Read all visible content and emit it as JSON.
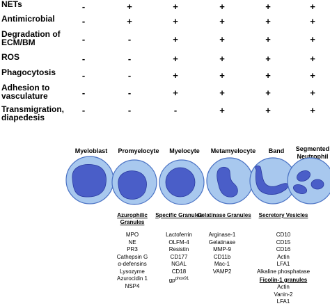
{
  "rows": [
    {
      "label": "NETs",
      "marks": [
        "-",
        "+",
        "+",
        "+",
        "+",
        "+"
      ]
    },
    {
      "label": "Antimicrobial",
      "marks": [
        "-",
        "+",
        "+",
        "+",
        "+",
        "+"
      ]
    },
    {
      "label": "Degradation of ECM/BM",
      "marks": [
        "-",
        "-",
        "+",
        "+",
        "+",
        "+"
      ]
    },
    {
      "label": "ROS",
      "marks": [
        "-",
        "-",
        "+",
        "+",
        "+",
        "+"
      ]
    },
    {
      "label": "Phagocytosis",
      "marks": [
        "-",
        "-",
        "+",
        "+",
        "+",
        "+"
      ]
    },
    {
      "label": "Adhesion to vasculature",
      "marks": [
        "-",
        "-",
        "+",
        "+",
        "+",
        "+"
      ]
    },
    {
      "label": "Transmigration, diapedesis",
      "marks": [
        "-",
        "-",
        "-",
        "+",
        "+",
        "+"
      ]
    }
  ],
  "stages": [
    "Myeloblast",
    "Promyelocyte",
    "Myelocyte",
    "Metamyelocyte",
    "Band",
    "Segmented Neutrophil"
  ],
  "granules": [
    {
      "title": "Azurophilic Granules",
      "markers": [
        "MPO",
        "NE",
        "PR3",
        "Cathepsin G",
        "α-defensins",
        "Lysozyme",
        "Azurocidin 1",
        "NSP4"
      ]
    },
    {
      "title": "Specific Granules",
      "markers": [
        "Lactoferrin",
        "OLFM-4",
        "Resistin",
        "CD177",
        "NGAL",
        "CD18"
      ],
      "last_marker": "gp",
      "last_marker_sup": "phox91"
    },
    {
      "title": "Gelatinase Granules",
      "markers": [
        "Arginase-1",
        "Gelatinase",
        "MMP-9",
        "CD11b",
        "Mac-1",
        "VAMP2"
      ]
    },
    {
      "title": "Secretory Vesicles",
      "markers": [
        "CD10",
        "CD15",
        "CD16",
        "Actin",
        "LFA1",
        "Alkaline phosphatase"
      ],
      "title2": "Ficolin-1 granules",
      "markers2": [
        "Actin",
        "Vanin-2",
        "LFA1"
      ]
    }
  ],
  "colors": {
    "cell_fill": "#a8c8ee",
    "cell_stroke": "#4a72c4",
    "nucleus_fill": "#4a5ec8",
    "nucleus_stroke": "#2a3aa0"
  }
}
